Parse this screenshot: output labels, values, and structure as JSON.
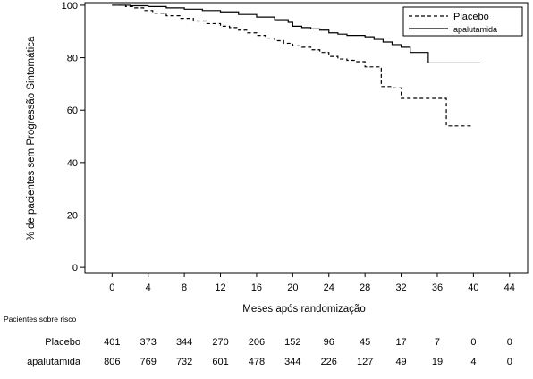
{
  "chart_data": {
    "type": "line",
    "xlabel": "Meses após randomização",
    "ylabel": "% de pacientes sem Progressão Sintomática",
    "xlim": [
      -3,
      46
    ],
    "ylim": [
      -2,
      101
    ],
    "xticks": [
      0,
      4,
      8,
      12,
      16,
      20,
      24,
      28,
      32,
      36,
      40,
      44
    ],
    "yticks": [
      0,
      20,
      40,
      60,
      80,
      100
    ],
    "grid": false,
    "legend": {
      "position": "top-right",
      "box": true
    },
    "series": [
      {
        "name": "Placebo",
        "style": "dashed",
        "color": "#000000",
        "x": [
          0,
          1.5,
          2.5,
          3.5,
          4.5,
          6,
          7.5,
          9,
          10.5,
          12,
          13,
          14,
          15,
          16,
          17,
          18,
          19,
          20,
          21,
          22,
          23,
          24,
          25,
          26,
          27,
          28,
          29,
          29.8,
          31,
          32,
          34,
          35,
          36.5,
          37,
          38,
          39,
          40
        ],
        "y": [
          100,
          99.5,
          99,
          98,
          97,
          96,
          95,
          94,
          93,
          92,
          91.5,
          90.5,
          89.5,
          88.5,
          87.5,
          86.5,
          85.5,
          84.5,
          84,
          83,
          82,
          80.5,
          79.5,
          79,
          78.5,
          76.5,
          76.5,
          69,
          68.5,
          64.5,
          64.5,
          64.5,
          64.5,
          54,
          54,
          54,
          54
        ]
      },
      {
        "name": "apalutamida",
        "style": "solid",
        "color": "#000000",
        "x": [
          0,
          2,
          4,
          6,
          8,
          10,
          12,
          14,
          16,
          18,
          19.5,
          20,
          21,
          22,
          23,
          24,
          25,
          26,
          27,
          28,
          29,
          30,
          31,
          32,
          33,
          34,
          35,
          36,
          37,
          38,
          39,
          40,
          40.8
        ],
        "y": [
          100,
          99.8,
          99.5,
          99,
          98.5,
          98,
          97.5,
          96.5,
          95.5,
          94.5,
          93.5,
          92,
          91.5,
          91,
          90.5,
          89.5,
          89,
          88.5,
          88.5,
          88,
          87,
          86,
          85,
          84,
          82,
          82,
          78,
          78,
          78,
          78,
          78,
          78,
          78
        ]
      }
    ],
    "risk_table": {
      "title": "Pacientes sobre risco",
      "times": [
        0,
        4,
        8,
        12,
        16,
        20,
        24,
        28,
        32,
        36,
        40,
        44
      ],
      "rows": [
        {
          "label": "Placebo",
          "values": [
            "401",
            "373",
            "344",
            "270",
            "206",
            "152",
            "96",
            "45",
            "17",
            "7",
            "0",
            "0"
          ]
        },
        {
          "label": "apalutamida",
          "values": [
            "806",
            "769",
            "732",
            "601",
            "478",
            "344",
            "226",
            "127",
            "49",
            "19",
            "4",
            "0"
          ]
        }
      ]
    }
  }
}
